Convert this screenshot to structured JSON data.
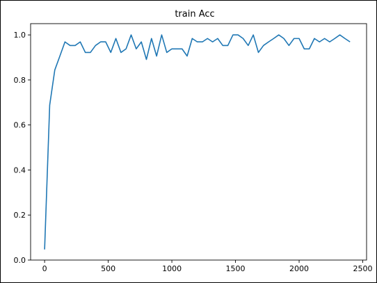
{
  "chart_data": {
    "type": "line",
    "title": "train Acc",
    "xlabel": "",
    "ylabel": "",
    "xlim": [
      -110,
      2530
    ],
    "ylim": [
      0.0,
      1.05
    ],
    "xticks": [
      0,
      500,
      1000,
      1500,
      2000,
      2500
    ],
    "xtick_labels": [
      "0",
      "500",
      "1000",
      "1500",
      "2000",
      "2500"
    ],
    "yticks": [
      0.0,
      0.2,
      0.4,
      0.6,
      0.8,
      1.0
    ],
    "ytick_labels": [
      "0.0",
      "0.2",
      "0.4",
      "0.6",
      "0.8",
      "1.0"
    ],
    "grid": false,
    "line_color": "#1f77b4",
    "series": [
      {
        "x": [
          0,
          40,
          80,
          120,
          160,
          200,
          240,
          280,
          320,
          360,
          400,
          440,
          480,
          520,
          560,
          600,
          640,
          680,
          720,
          760,
          800,
          840,
          880,
          920,
          960,
          1000,
          1040,
          1080,
          1120,
          1160,
          1200,
          1240,
          1280,
          1320,
          1360,
          1400,
          1440,
          1480,
          1520,
          1560,
          1600,
          1640,
          1680,
          1720,
          1760,
          1800,
          1840,
          1880,
          1920,
          1960,
          2000,
          2040,
          2080,
          2120,
          2160,
          2200,
          2240,
          2280,
          2320,
          2360,
          2400
        ],
        "y": [
          0.047,
          0.688,
          0.844,
          0.906,
          0.969,
          0.953,
          0.953,
          0.969,
          0.922,
          0.922,
          0.953,
          0.969,
          0.969,
          0.922,
          0.984,
          0.922,
          0.938,
          1.0,
          0.938,
          0.969,
          0.891,
          0.984,
          0.906,
          1.0,
          0.922,
          0.938,
          0.938,
          0.938,
          0.906,
          0.984,
          0.969,
          0.969,
          0.984,
          0.969,
          0.984,
          0.953,
          0.953,
          1.0,
          1.0,
          0.984,
          0.953,
          1.0,
          0.922,
          0.953,
          0.969,
          0.984,
          1.0,
          0.984,
          0.953,
          0.984,
          0.984,
          0.938,
          0.938,
          0.984,
          0.969,
          0.984,
          0.969,
          0.984,
          1.0,
          0.984,
          0.969
        ]
      }
    ]
  }
}
